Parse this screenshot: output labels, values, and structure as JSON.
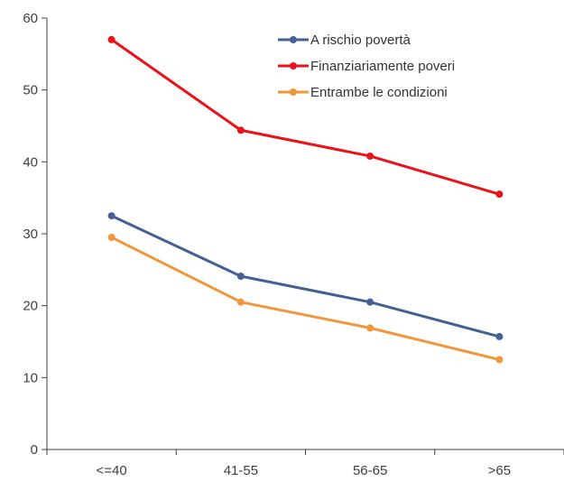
{
  "chart_data": {
    "type": "line",
    "title": "",
    "xlabel": "",
    "ylabel": "",
    "categories": [
      "<=40",
      "41-55",
      "56-65",
      ">65"
    ],
    "ylim": [
      0,
      60
    ],
    "yticks": [
      0,
      10,
      20,
      30,
      40,
      50,
      60
    ],
    "grid": false,
    "legend_position": "top-right",
    "series": [
      {
        "name": "A rischio povertà",
        "color": "#436193",
        "values": [
          32.5,
          24.1,
          20.5,
          15.7
        ]
      },
      {
        "name": "Finanziariamente poveri",
        "color": "#e8131b",
        "values": [
          57.0,
          44.4,
          40.8,
          35.5
        ]
      },
      {
        "name": "Entrambe le condizioni",
        "color": "#f0963c",
        "values": [
          29.5,
          20.5,
          16.9,
          12.5
        ]
      }
    ]
  }
}
